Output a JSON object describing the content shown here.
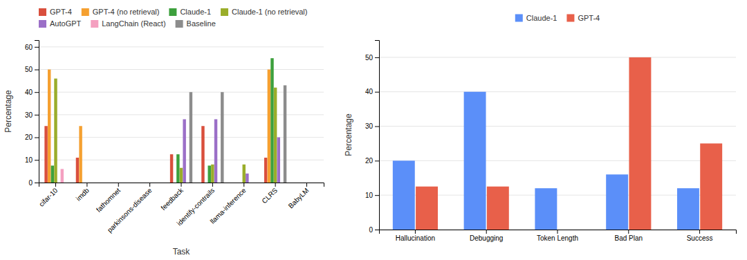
{
  "chart_data": [
    {
      "type": "bar",
      "xlabel": "Task",
      "ylabel": "Percentage",
      "categories": [
        "cifar-10",
        "imdb",
        "fathomnet",
        "parkinsons-disease",
        "feedback",
        "identify-contrails",
        "llama-inference",
        "CLRS",
        "BabyLM"
      ],
      "series": [
        {
          "name": "GPT-4",
          "color": "#d94f3d",
          "values": [
            25,
            11,
            0,
            0,
            12.5,
            25,
            0,
            11,
            0
          ]
        },
        {
          "name": "GPT-4 (no retrieval)",
          "color": "#f5a030",
          "values": [
            50,
            25,
            0,
            0,
            0,
            0,
            0,
            50,
            0
          ]
        },
        {
          "name": "Claude-1",
          "color": "#3da03d",
          "values": [
            7.5,
            0,
            0,
            0,
            12.5,
            7.5,
            0,
            55,
            0
          ]
        },
        {
          "name": "Claude-1 (no retrieval)",
          "color": "#9aad2a",
          "values": [
            46,
            0,
            0,
            0,
            6.5,
            8,
            8,
            42,
            0
          ]
        },
        {
          "name": "AutoGPT",
          "color": "#9b6fc7",
          "values": [
            0,
            0,
            0,
            0,
            28,
            28,
            4,
            20,
            0
          ]
        },
        {
          "name": "LangChain (React)",
          "color": "#f4a0c0",
          "values": [
            6,
            0,
            0,
            0,
            0,
            0,
            0,
            0,
            0
          ]
        },
        {
          "name": "Baseline",
          "color": "#8c8c8c",
          "values": [
            0,
            0,
            0,
            0,
            40,
            40,
            0,
            43,
            0
          ]
        }
      ],
      "ylim": [
        0,
        63
      ],
      "yticks": [
        0,
        10,
        20,
        30,
        40,
        50,
        60
      ],
      "grid": true,
      "legend": "top-left"
    },
    {
      "type": "bar",
      "ylabel": "Percentage",
      "categories": [
        "Hallucination",
        "Debugging",
        "Token Length",
        "Bad Plan",
        "Success"
      ],
      "series": [
        {
          "name": "Claude-1",
          "color": "#5b8ff9",
          "values": [
            20,
            40,
            12,
            16,
            12
          ]
        },
        {
          "name": "GPT-4",
          "color": "#e8604a",
          "values": [
            12.5,
            12.5,
            0,
            50,
            25
          ]
        }
      ],
      "ylim": [
        0,
        55
      ],
      "yticks": [
        0,
        10,
        20,
        30,
        40,
        50
      ],
      "grid": true,
      "legend": "top"
    }
  ]
}
